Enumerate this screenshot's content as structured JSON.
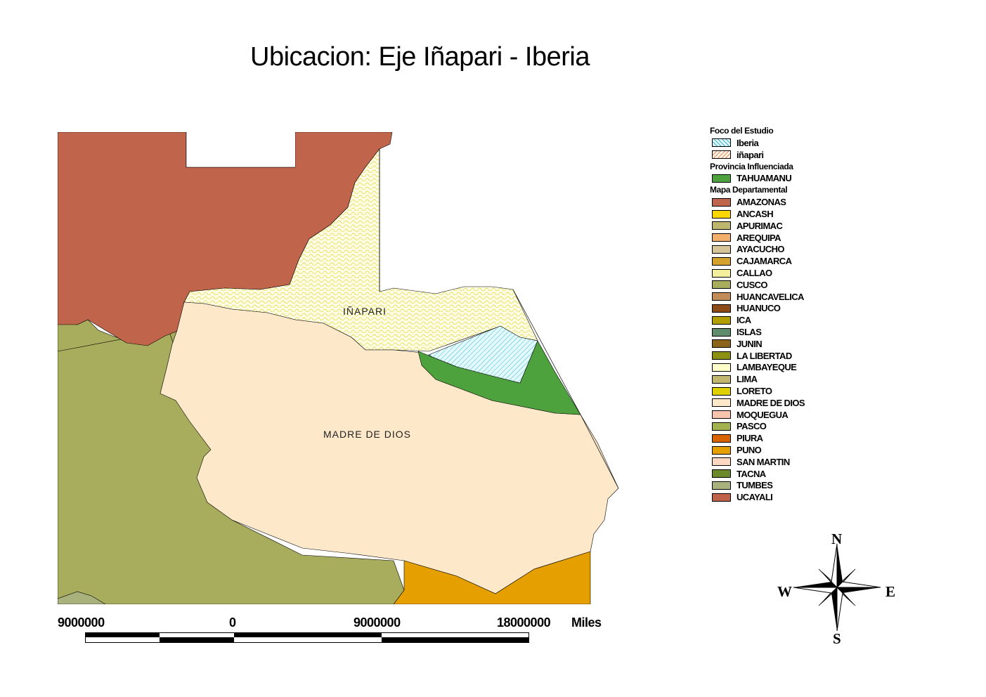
{
  "title": "Ubicacion:  Eje Iñapari - Iberia",
  "map_labels": {
    "inapari": "IÑAPARI",
    "madre_de_dios": "MADRE DE DIOS"
  },
  "legend": {
    "foco_title": "Foco del Estudio",
    "foco_items": [
      {
        "label": "Iberia",
        "color": "#bfeef4",
        "pattern": "hatch-blue"
      },
      {
        "label": "iñapari",
        "color": "#fdf6d6",
        "pattern": "hatch-orange"
      }
    ],
    "provincia_title": "Provincia Influenciada",
    "provincia_items": [
      {
        "label": "TAHUAMANU",
        "color": "#4ea23e"
      }
    ],
    "mapa_title": "Mapa Departamental",
    "departamentos": [
      {
        "label": "AMAZONAS",
        "color": "#bf654c"
      },
      {
        "label": "ANCASH",
        "color": "#ffd700"
      },
      {
        "label": "APURIMAC",
        "color": "#bdb66c"
      },
      {
        "label": "AREQUIPA",
        "color": "#f3b06c"
      },
      {
        "label": "AYACUCHO",
        "color": "#d7c59a"
      },
      {
        "label": "CAJAMARCA",
        "color": "#d5a12d"
      },
      {
        "label": "CALLAO",
        "color": "#f3ef9d"
      },
      {
        "label": "CUSCO",
        "color": "#a8ad5d"
      },
      {
        "label": "HUANCAVELICA",
        "color": "#c28c58"
      },
      {
        "label": "HUANUCO",
        "color": "#8b4a16"
      },
      {
        "label": "ICA",
        "color": "#b29e00"
      },
      {
        "label": "ISLAS",
        "color": "#5f8c6a"
      },
      {
        "label": "JUNIN",
        "color": "#8a6418"
      },
      {
        "label": "LA LIBERTAD",
        "color": "#8c9012"
      },
      {
        "label": "LAMBAYEQUE",
        "color": "#fdfdc9"
      },
      {
        "label": "LIMA",
        "color": "#c1b76e"
      },
      {
        "label": "LORETO",
        "color": "#dfd000"
      },
      {
        "label": "MADRE DE DIOS",
        "color": "#fde8c9"
      },
      {
        "label": "MOQUEGUA",
        "color": "#f9c4ad"
      },
      {
        "label": "PASCO",
        "color": "#a4b14f"
      },
      {
        "label": "PIURA",
        "color": "#d86400"
      },
      {
        "label": "PUNO",
        "color": "#e5a000"
      },
      {
        "label": "SAN MARTIN",
        "color": "#fcd8c1"
      },
      {
        "label": "TACNA",
        "color": "#6c8a2a"
      },
      {
        "label": "TUMBES",
        "color": "#a9b27c"
      },
      {
        "label": "UCAYALI",
        "color": "#c0614a"
      }
    ]
  },
  "scale": {
    "labels": [
      "9000000",
      "0",
      "9000000",
      "18000000"
    ],
    "unit": "Miles"
  },
  "compass": {
    "n": "N",
    "s": "S",
    "e": "E",
    "w": "W"
  }
}
